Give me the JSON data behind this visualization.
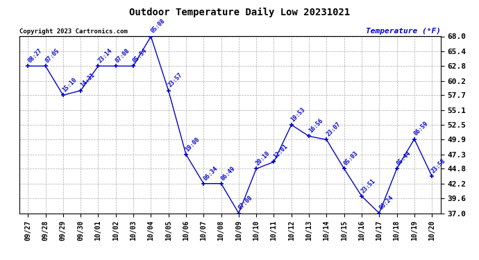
{
  "title": "Outdoor Temperature Daily Low 20231021",
  "ylabel": "Temperature (°F)",
  "copyright": "Copyright 2023 Cartronics.com",
  "bg_color": "#ffffff",
  "line_color": "#0000cc",
  "point_color": "#0000cc",
  "annotation_color": "#0000cc",
  "title_color": "#000000",
  "ylabel_color": "#0000cc",
  "copyright_color": "#000000",
  "grid_color": "#aaaaaa",
  "ylim": [
    37.0,
    68.0
  ],
  "yticks": [
    37.0,
    39.6,
    42.2,
    44.8,
    47.3,
    49.9,
    52.5,
    55.1,
    57.7,
    60.2,
    62.8,
    65.4,
    68.0
  ],
  "dates": [
    "09/27",
    "09/28",
    "09/29",
    "09/30",
    "10/01",
    "10/02",
    "10/03",
    "10/04",
    "10/05",
    "10/06",
    "10/07",
    "10/08",
    "10/09",
    "10/10",
    "10/11",
    "10/12",
    "10/13",
    "10/14",
    "10/15",
    "10/16",
    "10/17",
    "10/18",
    "10/19",
    "10/20"
  ],
  "temps": [
    62.8,
    62.8,
    57.7,
    58.5,
    62.8,
    62.8,
    62.8,
    68.0,
    58.5,
    47.3,
    42.2,
    42.2,
    37.0,
    44.8,
    46.0,
    52.5,
    50.5,
    49.9,
    44.8,
    40.0,
    37.0,
    44.8,
    50.0,
    43.5
  ],
  "time_labels": [
    "08:27",
    "07:05",
    "15:10",
    "14:31",
    "23:14",
    "07:08",
    "05:54",
    "05:08",
    "23:57",
    "19:00",
    "06:34",
    "06:49",
    "07:08",
    "20:10",
    "12:01",
    "19:53",
    "16:56",
    "23:07",
    "05:03",
    "23:51",
    "06:24",
    "05:44",
    "06:59",
    "23:58"
  ]
}
